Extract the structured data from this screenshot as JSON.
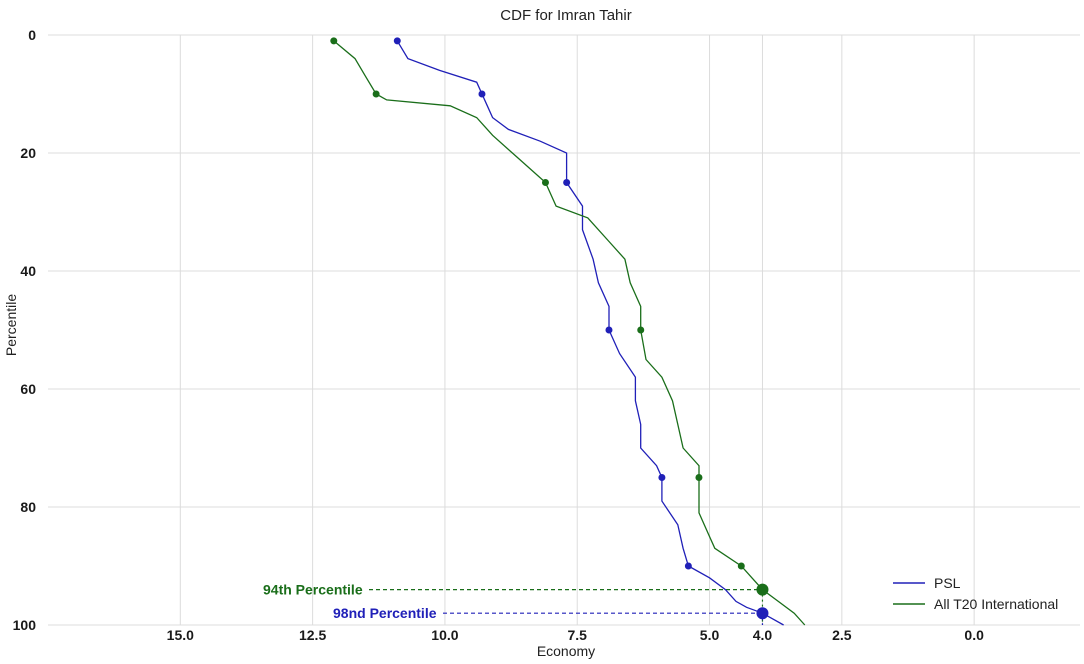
{
  "chart_data": {
    "type": "line",
    "title": "CDF for Imran Tahir",
    "xlabel": "Economy",
    "ylabel": "Percentile",
    "x_reversed": true,
    "xlim": [
      17.5,
      -2.0
    ],
    "ylim": [
      0,
      100
    ],
    "y_inverted": true,
    "x_ticks": [
      15.0,
      12.5,
      10.0,
      7.5,
      5.0,
      4.0,
      2.5,
      0.0
    ],
    "x_tick_labels": [
      "15.0",
      "12.5",
      "10.0",
      "7.5",
      "5.0",
      "4.0",
      "2.5",
      "0.0"
    ],
    "y_ticks": [
      0,
      20,
      40,
      60,
      80,
      100
    ],
    "y_tick_labels": [
      "0",
      "20",
      "40",
      "60",
      "80",
      "100"
    ],
    "grid": true,
    "legend_position": "bottom-right",
    "series": [
      {
        "name": "PSL",
        "color": "#2020b8",
        "points": [
          [
            10.9,
            1
          ],
          [
            10.7,
            4
          ],
          [
            10.1,
            6
          ],
          [
            9.4,
            8
          ],
          [
            9.3,
            10
          ],
          [
            9.2,
            12
          ],
          [
            9.1,
            14
          ],
          [
            8.8,
            16
          ],
          [
            8.2,
            18
          ],
          [
            7.7,
            20
          ],
          [
            7.7,
            25
          ],
          [
            7.4,
            29
          ],
          [
            7.4,
            33
          ],
          [
            7.2,
            38
          ],
          [
            7.1,
            42
          ],
          [
            6.9,
            46
          ],
          [
            6.9,
            50
          ],
          [
            6.7,
            54
          ],
          [
            6.4,
            58
          ],
          [
            6.4,
            62
          ],
          [
            6.3,
            66
          ],
          [
            6.3,
            70
          ],
          [
            6.0,
            73
          ],
          [
            5.9,
            75
          ],
          [
            5.9,
            79
          ],
          [
            5.6,
            83
          ],
          [
            5.5,
            87
          ],
          [
            5.4,
            90
          ],
          [
            5.0,
            92
          ],
          [
            4.7,
            94
          ],
          [
            4.5,
            96
          ],
          [
            4.3,
            97
          ],
          [
            4.0,
            98
          ],
          [
            3.8,
            99
          ],
          [
            3.6,
            100
          ]
        ],
        "markers": [
          [
            10.9,
            1
          ],
          [
            9.3,
            10
          ],
          [
            7.7,
            25
          ],
          [
            6.9,
            50
          ],
          [
            5.9,
            75
          ],
          [
            5.4,
            90
          ]
        ]
      },
      {
        "name": "All T20 International",
        "color": "#1a6e1a",
        "points": [
          [
            12.1,
            1
          ],
          [
            11.7,
            4
          ],
          [
            11.5,
            7
          ],
          [
            11.3,
            10
          ],
          [
            11.1,
            11
          ],
          [
            9.9,
            12
          ],
          [
            9.4,
            14
          ],
          [
            9.1,
            17
          ],
          [
            8.6,
            21
          ],
          [
            8.1,
            25
          ],
          [
            7.9,
            29
          ],
          [
            7.3,
            31
          ],
          [
            6.9,
            35
          ],
          [
            6.6,
            38
          ],
          [
            6.5,
            42
          ],
          [
            6.3,
            46
          ],
          [
            6.3,
            50
          ],
          [
            6.2,
            55
          ],
          [
            5.9,
            58
          ],
          [
            5.7,
            62
          ],
          [
            5.6,
            66
          ],
          [
            5.5,
            70
          ],
          [
            5.2,
            73
          ],
          [
            5.2,
            75
          ],
          [
            5.2,
            81
          ],
          [
            5.0,
            85
          ],
          [
            4.9,
            87
          ],
          [
            4.4,
            90
          ],
          [
            4.2,
            92
          ],
          [
            4.0,
            94
          ],
          [
            3.7,
            96
          ],
          [
            3.4,
            98
          ],
          [
            3.2,
            100
          ]
        ],
        "markers": [
          [
            12.1,
            1
          ],
          [
            11.3,
            10
          ],
          [
            8.1,
            25
          ],
          [
            6.3,
            50
          ],
          [
            5.2,
            75
          ],
          [
            4.4,
            90
          ]
        ]
      }
    ],
    "annotations": [
      {
        "text": "94th Percentile",
        "x": 4.0,
        "y": 94,
        "color": "#1a6e1a"
      },
      {
        "text": "98nd Percentile",
        "x": 4.0,
        "y": 98,
        "color": "#2020b8"
      }
    ]
  }
}
